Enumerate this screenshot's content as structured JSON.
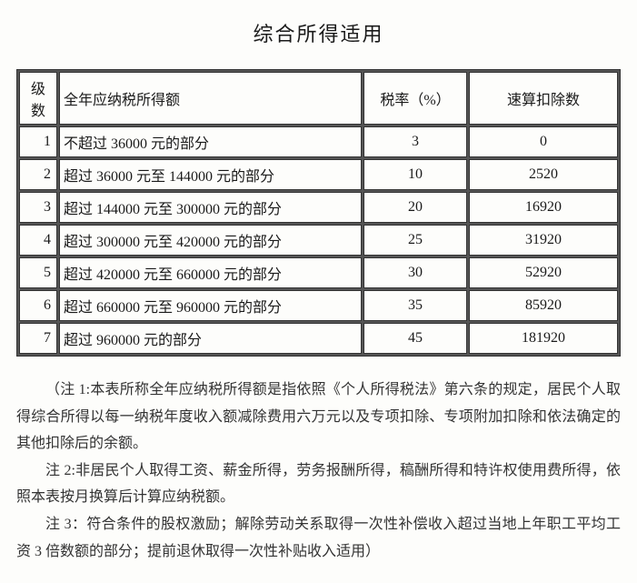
{
  "title": "综合所得适用",
  "table": {
    "headers": {
      "level": "级数",
      "income": "全年应纳税所得额",
      "rate": "税率（%）",
      "deduct": "速算扣除数"
    },
    "rows": [
      {
        "level": "1",
        "income": "不超过 36000 元的部分",
        "rate": "3",
        "deduct": "0"
      },
      {
        "level": "2",
        "income": "超过 36000 元至 144000 元的部分",
        "rate": "10",
        "deduct": "2520"
      },
      {
        "level": "3",
        "income": "超过 144000 元至 300000 元的部分",
        "rate": "20",
        "deduct": "16920"
      },
      {
        "level": "4",
        "income": "超过 300000 元至 420000 元的部分",
        "rate": "25",
        "deduct": "31920"
      },
      {
        "level": "5",
        "income": "超过 420000 元至 660000 元的部分",
        "rate": "30",
        "deduct": "52920"
      },
      {
        "level": "6",
        "income": "超过 660000 元至 960000 元的部分",
        "rate": "35",
        "deduct": "85920"
      },
      {
        "level": "7",
        "income": "超过 960000 元的部分",
        "rate": "45",
        "deduct": "181920"
      }
    ]
  },
  "notes": [
    "（注 1:本表所称全年应纳税所得额是指依照《个人所得税法》第六条的规定，居民个人取得综合所得以每一纳税年度收入额减除费用六万元以及专项扣除、专项附加扣除和依法确定的其他扣除后的余额。",
    "注 2:非居民个人取得工资、薪金所得，劳务报酬所得，稿酬所得和特许权使用费所得，依照本表按月换算后计算应纳税额。",
    "注 3：符合条件的股权激励；解除劳动关系取得一次性补偿收入超过当地上年职工平均工资 3 倍数额的部分；提前退休取得一次性补贴收入适用）"
  ]
}
